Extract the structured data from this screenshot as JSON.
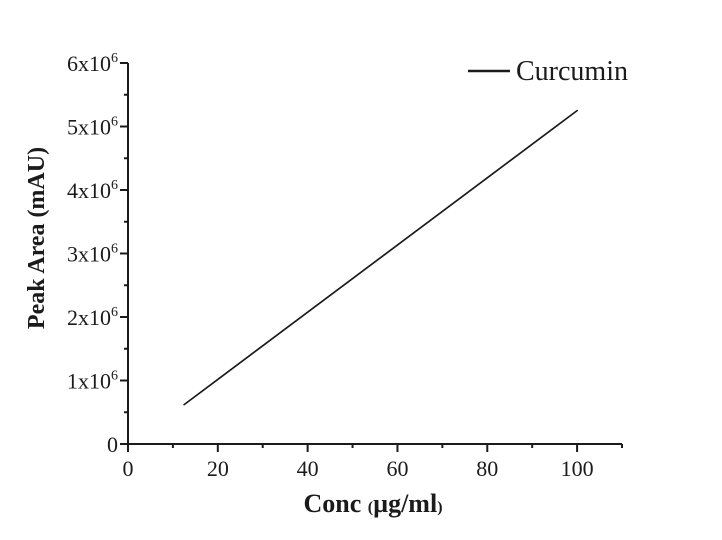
{
  "figure": {
    "background": "#ffffff",
    "ink_color": "#1b1b1b"
  },
  "chart_data": {
    "type": "line",
    "title": "",
    "xlabel": "Conc (µg/ml)",
    "ylabel": "Peak Area (mAU)",
    "xlim": [
      0,
      110
    ],
    "ylim": [
      0,
      6000000
    ],
    "grid": false,
    "x_major_ticks": [
      0,
      20,
      40,
      60,
      80,
      100
    ],
    "x_tick_labels": [
      "0",
      "20",
      "40",
      "60",
      "80",
      "100"
    ],
    "x_minor_ticks": [
      10,
      30,
      50,
      70,
      90,
      110
    ],
    "y_major_ticks": [
      0,
      1000000,
      2000000,
      3000000,
      4000000,
      5000000,
      6000000
    ],
    "y_tick_labels": [
      "0",
      "1x10^6",
      "2x10^6",
      "3x10^6",
      "4x10^6",
      "5x10^6",
      "6x10^6"
    ],
    "y_minor_ticks": [
      500000,
      1500000,
      2500000,
      3500000,
      4500000,
      5500000
    ],
    "legend": {
      "position": "top-right",
      "frame": false,
      "entries": [
        {
          "label": "Curcumin",
          "color": "#1b1b1b"
        }
      ]
    },
    "series": [
      {
        "name": "Curcumin",
        "color": "#1b1b1b",
        "line_width": 1.7,
        "points": [
          {
            "x": 12.5,
            "y": 620000
          },
          {
            "x": 100,
            "y": 5250000
          }
        ]
      }
    ]
  }
}
